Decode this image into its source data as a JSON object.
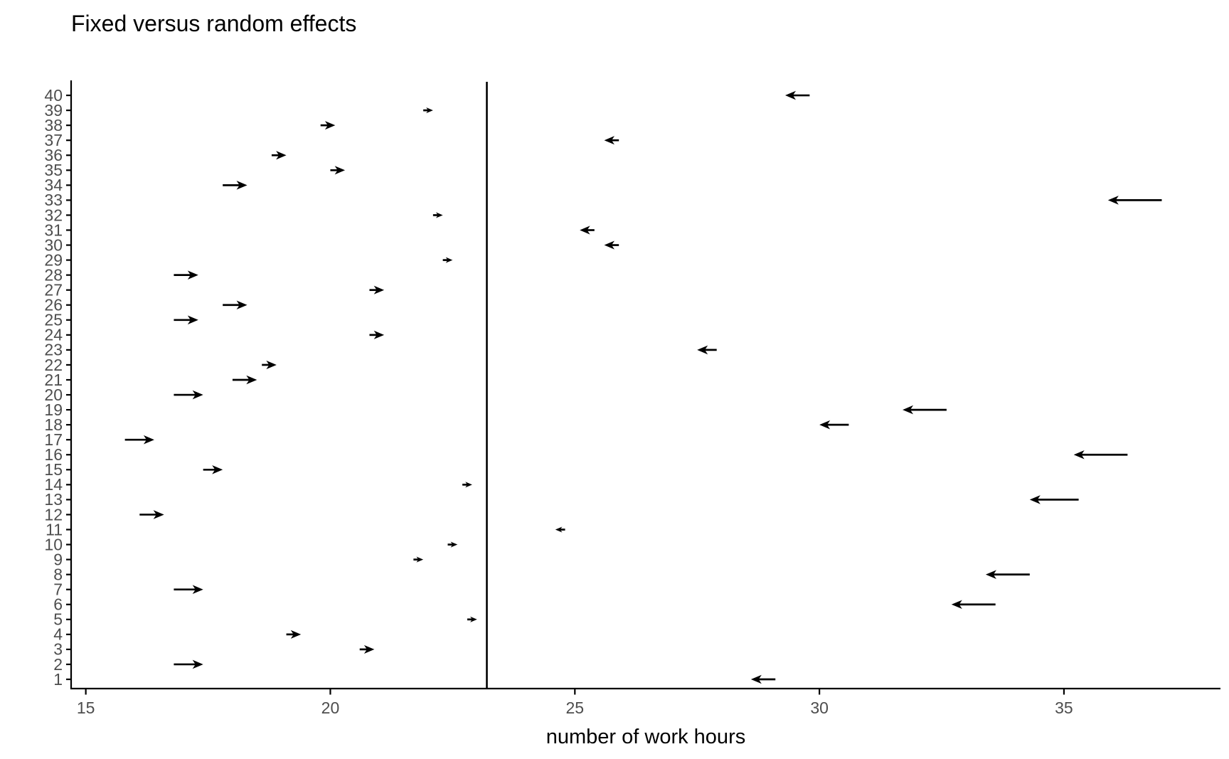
{
  "chart_data": {
    "type": "arrow",
    "title": "Fixed versus random effects",
    "xlabel": "number of work hours",
    "ylabel": "",
    "x_ticks": [
      15,
      20,
      25,
      30,
      35
    ],
    "xlim": [
      14.7,
      38.2
    ],
    "y_rows": [
      1,
      40
    ],
    "grid": "off",
    "legend": "none",
    "reference_line_x": 23.2,
    "arrow_meaning": "each arrow points from the fixed-effect estimate to the random-effect (shrunken) estimate",
    "rows": [
      {
        "id": 1,
        "fixed": 29.1,
        "random": 28.6
      },
      {
        "id": 2,
        "fixed": 16.8,
        "random": 17.4
      },
      {
        "id": 3,
        "fixed": 20.6,
        "random": 20.9
      },
      {
        "id": 4,
        "fixed": 19.1,
        "random": 19.4
      },
      {
        "id": 5,
        "fixed": 22.8,
        "random": 23.0
      },
      {
        "id": 6,
        "fixed": 33.6,
        "random": 32.7
      },
      {
        "id": 7,
        "fixed": 16.8,
        "random": 17.4
      },
      {
        "id": 8,
        "fixed": 34.3,
        "random": 33.4
      },
      {
        "id": 9,
        "fixed": 21.7,
        "random": 21.9
      },
      {
        "id": 10,
        "fixed": 22.4,
        "random": 22.6
      },
      {
        "id": 11,
        "fixed": 24.8,
        "random": 24.6
      },
      {
        "id": 12,
        "fixed": 16.1,
        "random": 16.6
      },
      {
        "id": 13,
        "fixed": 35.3,
        "random": 34.3
      },
      {
        "id": 14,
        "fixed": 22.7,
        "random": 22.9
      },
      {
        "id": 15,
        "fixed": 17.4,
        "random": 17.8
      },
      {
        "id": 16,
        "fixed": 36.3,
        "random": 35.2
      },
      {
        "id": 17,
        "fixed": 15.8,
        "random": 16.4
      },
      {
        "id": 18,
        "fixed": 30.6,
        "random": 30.0
      },
      {
        "id": 19,
        "fixed": 32.6,
        "random": 31.7
      },
      {
        "id": 20,
        "fixed": 16.8,
        "random": 17.4
      },
      {
        "id": 21,
        "fixed": 18.0,
        "random": 18.5
      },
      {
        "id": 22,
        "fixed": 18.6,
        "random": 18.9
      },
      {
        "id": 23,
        "fixed": 27.9,
        "random": 27.5
      },
      {
        "id": 24,
        "fixed": 20.8,
        "random": 21.1
      },
      {
        "id": 25,
        "fixed": 16.8,
        "random": 17.3
      },
      {
        "id": 26,
        "fixed": 17.8,
        "random": 18.3
      },
      {
        "id": 27,
        "fixed": 20.8,
        "random": 21.1
      },
      {
        "id": 28,
        "fixed": 16.8,
        "random": 17.3
      },
      {
        "id": 29,
        "fixed": 22.3,
        "random": 22.5
      },
      {
        "id": 30,
        "fixed": 25.9,
        "random": 25.6
      },
      {
        "id": 31,
        "fixed": 25.4,
        "random": 25.1
      },
      {
        "id": 32,
        "fixed": 22.1,
        "random": 22.3
      },
      {
        "id": 33,
        "fixed": 37.0,
        "random": 35.9
      },
      {
        "id": 34,
        "fixed": 17.8,
        "random": 18.3
      },
      {
        "id": 35,
        "fixed": 20.0,
        "random": 20.3
      },
      {
        "id": 36,
        "fixed": 18.8,
        "random": 19.1
      },
      {
        "id": 37,
        "fixed": 25.9,
        "random": 25.6
      },
      {
        "id": 38,
        "fixed": 19.8,
        "random": 20.1
      },
      {
        "id": 39,
        "fixed": 21.9,
        "random": 22.1
      },
      {
        "id": 40,
        "fixed": 29.8,
        "random": 29.3
      }
    ]
  },
  "colors": {
    "background": "#ffffff",
    "arrow": "#000000",
    "axis_line": "#000000",
    "reference_line": "#000000",
    "axis_text": "#4d4d4d",
    "title_text": "#000000"
  }
}
